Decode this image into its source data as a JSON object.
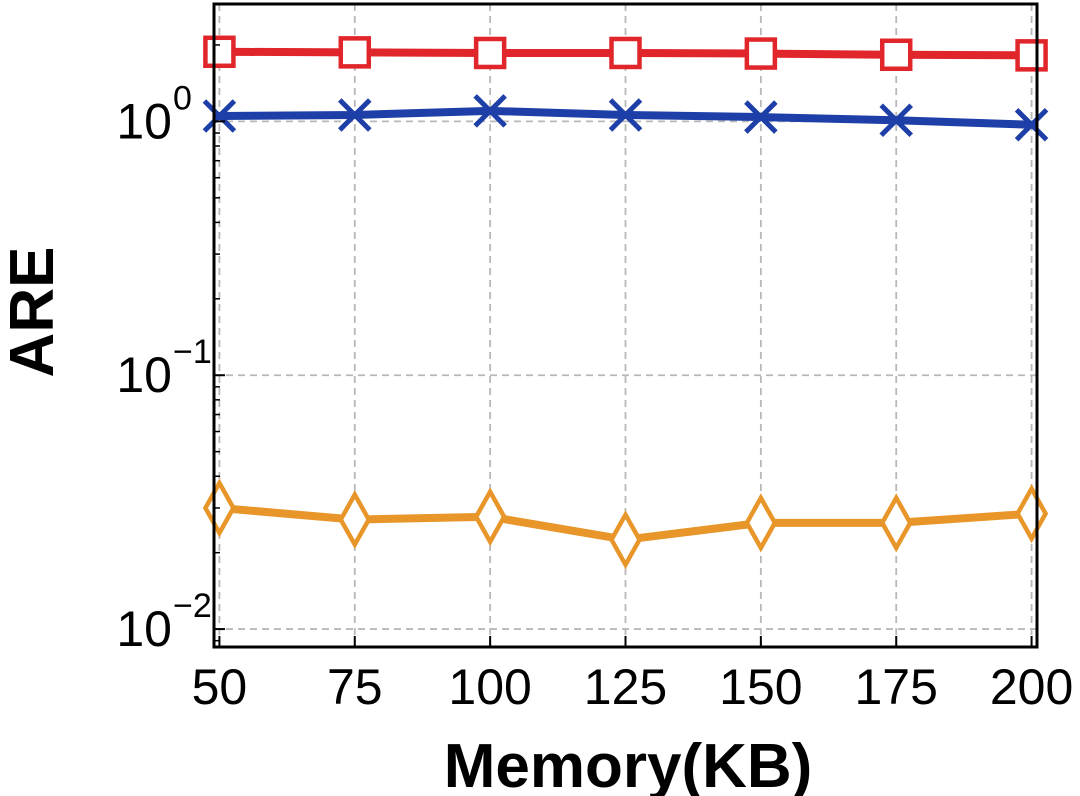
{
  "chart_data": {
    "type": "line",
    "xlabel": "Memory(KB)",
    "ylabel": "ARE",
    "x": [
      50,
      75,
      100,
      125,
      150,
      175,
      200
    ],
    "xlim": [
      49,
      201
    ],
    "yscale": "log",
    "ylim": [
      0.0085,
      2.9
    ],
    "y_ticks": [
      {
        "base": "10",
        "exp": "0",
        "value": 1
      },
      {
        "base": "10",
        "exp": "−1",
        "value": 0.1
      },
      {
        "base": "10",
        "exp": "−2",
        "value": 0.01
      }
    ],
    "grid": true,
    "series": [
      {
        "color": "#e0262b",
        "marker": "square",
        "values": [
          1.88,
          1.87,
          1.86,
          1.86,
          1.85,
          1.83,
          1.82
        ]
      },
      {
        "color": "#1e3fa8",
        "marker": "x",
        "values": [
          1.05,
          1.06,
          1.1,
          1.06,
          1.04,
          1.01,
          0.97
        ]
      },
      {
        "color": "#e8962a",
        "marker": "diamond",
        "values": [
          0.03,
          0.027,
          0.0277,
          0.0225,
          0.0262,
          0.0262,
          0.0285
        ]
      }
    ]
  }
}
